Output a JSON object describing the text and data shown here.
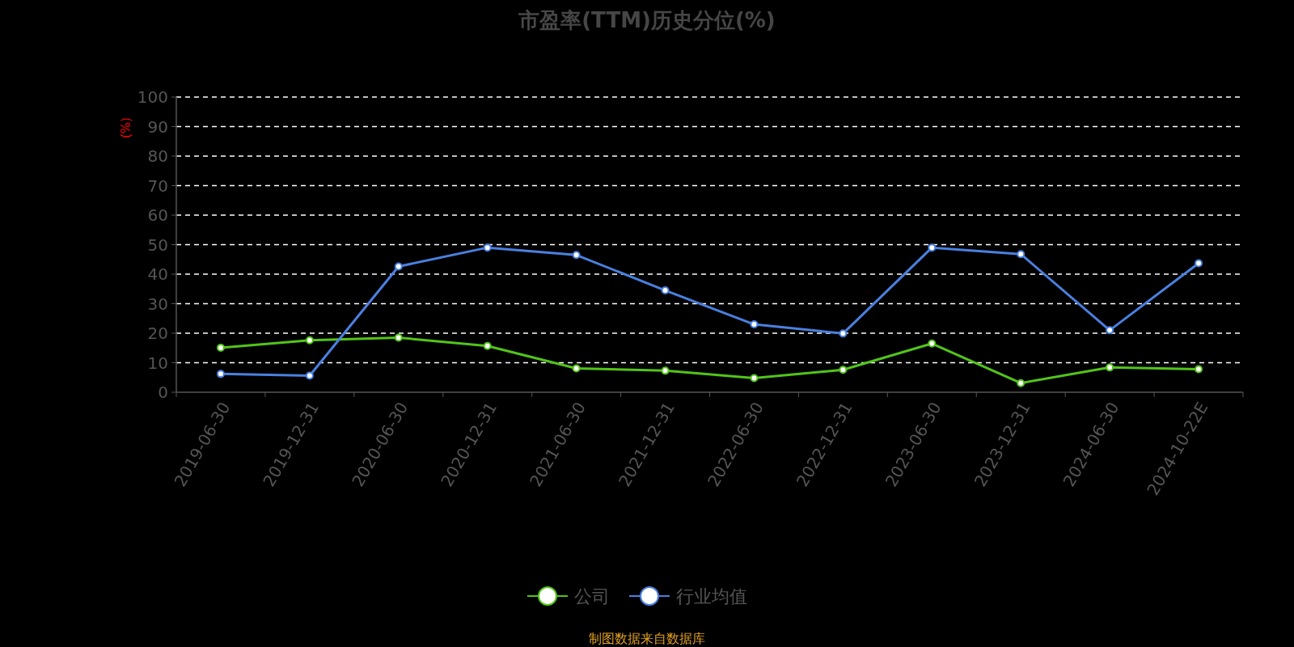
{
  "chart_data": {
    "type": "line",
    "title": "市盈率(TTM)历史分位(%)",
    "ylabel": "(%)",
    "categories": [
      "2019-06-30",
      "2019-12-31",
      "2020-06-30",
      "2020-12-31",
      "2021-06-30",
      "2021-12-31",
      "2022-06-30",
      "2022-12-31",
      "2023-06-30",
      "2023-12-31",
      "2024-06-30",
      "2024-10-22E"
    ],
    "series": [
      {
        "name": "公司",
        "color": "#52c41a",
        "values": [
          15.1,
          17.6,
          18.5,
          15.7,
          8.1,
          7.3,
          4.8,
          7.6,
          16.5,
          3.1,
          8.4,
          7.8
        ]
      },
      {
        "name": "行业均值",
        "color": "#4a80e0",
        "values": [
          6.2,
          5.6,
          42.6,
          49.0,
          46.5,
          34.5,
          23.0,
          19.9,
          49.0,
          46.8,
          21.0,
          43.7
        ]
      }
    ],
    "ylim": [
      0,
      100
    ],
    "yticks": [
      0,
      10,
      20,
      30,
      40,
      50,
      60,
      70,
      80,
      90,
      100
    ],
    "grid": "y",
    "legend": "bottom",
    "marker": "circle",
    "line_style": "solid",
    "annotations": [
      "制图数据来自数据库"
    ]
  }
}
